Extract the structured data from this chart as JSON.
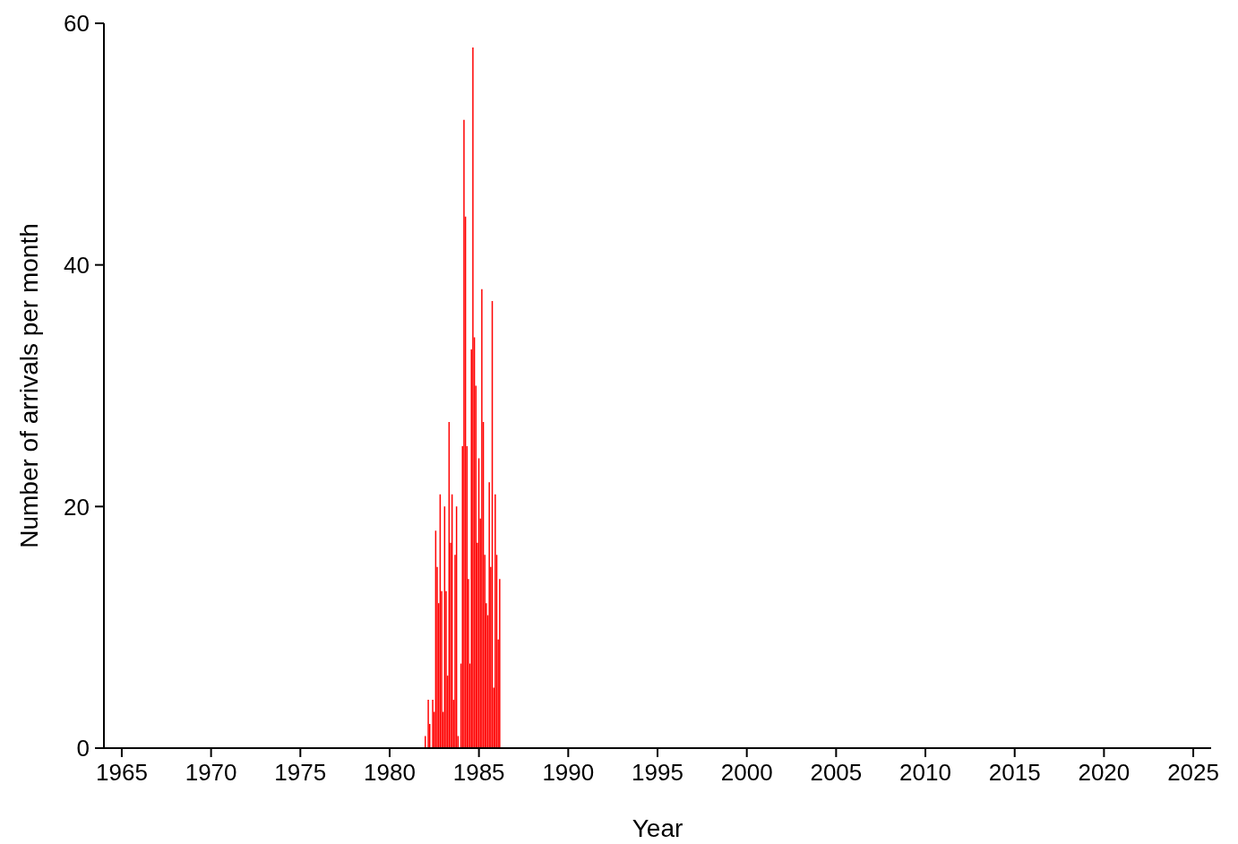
{
  "chart_data": {
    "type": "bar",
    "xlabel": "Year",
    "ylabel": "Number of arrivals per month",
    "x": [
      "1982-01",
      "1982-03",
      "1982-04",
      "1982-06",
      "1982-07",
      "1982-08",
      "1982-09",
      "1982-10",
      "1982-11",
      "1982-12",
      "1983-01",
      "1983-02",
      "1983-03",
      "1983-04",
      "1983-05",
      "1983-06",
      "1983-07",
      "1983-08",
      "1983-09",
      "1983-10",
      "1983-11",
      "1984-01",
      "1984-02",
      "1984-03",
      "1984-04",
      "1984-05",
      "1984-06",
      "1984-07",
      "1984-08",
      "1984-09",
      "1984-10",
      "1984-11",
      "1984-12",
      "1985-01",
      "1985-02",
      "1985-03",
      "1985-04",
      "1985-05",
      "1985-06",
      "1985-07",
      "1985-08",
      "1985-09",
      "1985-10",
      "1985-11",
      "1985-12",
      "1986-01",
      "1986-02",
      "1986-03"
    ],
    "values": [
      1,
      4,
      2,
      4,
      3,
      18,
      15,
      12,
      21,
      13,
      3,
      20,
      13,
      6,
      27,
      17,
      21,
      4,
      16,
      20,
      1,
      7,
      25,
      52,
      44,
      25,
      14,
      7,
      33,
      58,
      34,
      30,
      17,
      24,
      19,
      38,
      27,
      16,
      12,
      11,
      22,
      15,
      37,
      5,
      21,
      16,
      9,
      14
    ],
    "color": "#ff0000",
    "xlim": [
      "1964",
      "2026"
    ],
    "xticks": [
      "1965",
      "1970",
      "1975",
      "1980",
      "1985",
      "1990",
      "1995",
      "2000",
      "2005",
      "2010",
      "2015",
      "2020",
      "2025"
    ],
    "ylim": [
      0,
      60
    ],
    "yticks": [
      0,
      20,
      40,
      60
    ]
  }
}
